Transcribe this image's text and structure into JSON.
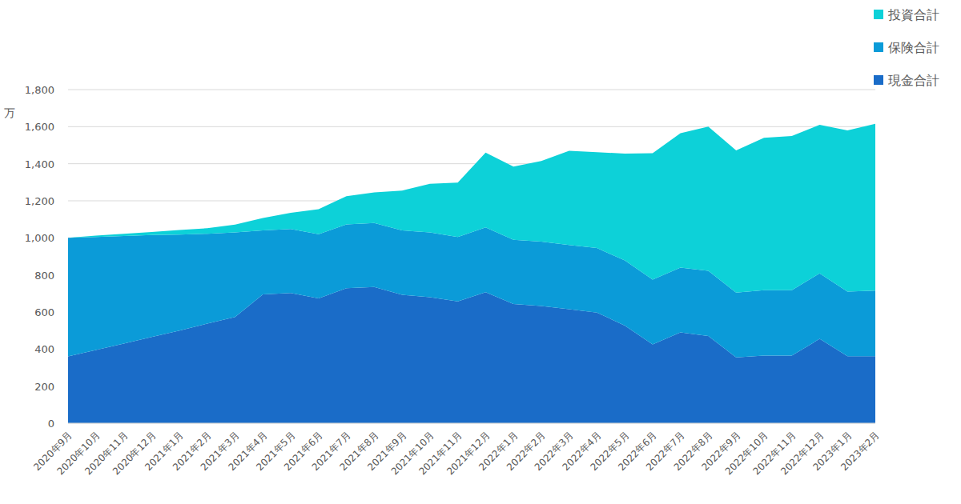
{
  "chart_data": {
    "type": "area",
    "stacked": true,
    "grid": true,
    "legend": "top-right",
    "y_label": "万",
    "categories": [
      "2020年9月",
      "2020年10月",
      "2020年11月",
      "2020年12月",
      "2021年1月",
      "2021年2月",
      "2021年3月",
      "2021年4月",
      "2021年5月",
      "2021年6月",
      "2021年7月",
      "2021年8月",
      "2021年9月",
      "2021年10月",
      "2021年11月",
      "2021年12月",
      "2022年1月",
      "2022年2月",
      "2022年3月",
      "2022年4月",
      "2022年5月",
      "2022年6月",
      "2022年7月",
      "2022年8月",
      "2022年9月",
      "2022年10月",
      "2022年11月",
      "2022年12月",
      "2023年1月",
      "2023年2月"
    ],
    "series": [
      {
        "name": "現金合計",
        "color": "#1a6cc8",
        "values": [
          360,
          395,
          430,
          465,
          500,
          537,
          573,
          695,
          703,
          673,
          728,
          735,
          693,
          680,
          657,
          707,
          643,
          632,
          615,
          597,
          527,
          425,
          490,
          470,
          355,
          365,
          365,
          455,
          362,
          362
        ]
      },
      {
        "name": "保険合計",
        "color": "#0b9bd8",
        "values": [
          640,
          610,
          580,
          550,
          518,
          485,
          457,
          345,
          345,
          347,
          345,
          345,
          347,
          350,
          348,
          350,
          347,
          348,
          347,
          348,
          351,
          350,
          350,
          352,
          350,
          353,
          353,
          353,
          348,
          353
        ]
      },
      {
        "name": "投資合計",
        "color": "#0dd1d8",
        "values": [
          0,
          7,
          12,
          17,
          24,
          30,
          42,
          67,
          87,
          135,
          152,
          165,
          215,
          262,
          293,
          403,
          395,
          435,
          508,
          517,
          577,
          682,
          725,
          778,
          767,
          822,
          832,
          802,
          870,
          900
        ]
      }
    ],
    "ylim": [
      0,
      1800
    ],
    "yticks": [
      0,
      200,
      400,
      600,
      800,
      {
        "value": 1000,
        "label": "1,000"
      },
      {
        "value": 1200,
        "label": "1,200"
      },
      {
        "value": 1400,
        "label": "1,400"
      },
      {
        "value": 1600,
        "label": "1,600"
      },
      {
        "value": 1800,
        "label": "1,800"
      }
    ]
  }
}
